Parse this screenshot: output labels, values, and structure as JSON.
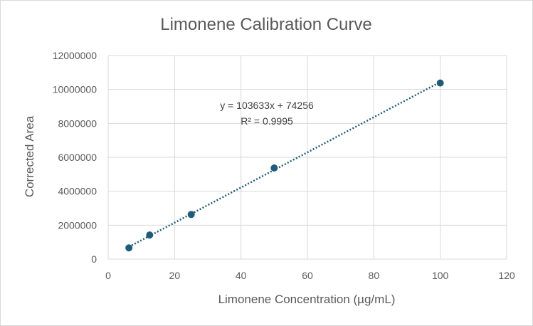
{
  "chart_data": {
    "type": "scatter",
    "title": "Limonene Calibration Curve",
    "xlabel": "Limonene Concentration (µg/mL)",
    "ylabel": "Corrected Area",
    "xlim": [
      0,
      120
    ],
    "ylim": [
      0,
      12000000
    ],
    "x_ticks": [
      "0",
      "20",
      "40",
      "60",
      "80",
      "100",
      "120"
    ],
    "y_ticks": [
      "0",
      "2000000",
      "4000000",
      "6000000",
      "8000000",
      "10000000",
      "12000000"
    ],
    "grid": true,
    "legend": "none",
    "series": [
      {
        "x": [
          6.25,
          12.5,
          25,
          50,
          100
        ],
        "y": [
          660000,
          1420000,
          2630000,
          5370000,
          10380000
        ],
        "color": "#1f5c7a"
      }
    ],
    "trendline": {
      "type": "linear",
      "slope": 103633,
      "intercept": 74256,
      "color": "#1f5c7a",
      "style": "dotted",
      "equation_label": "y = 103633x + 74256",
      "r2_label": "R² = 0.9995"
    }
  }
}
